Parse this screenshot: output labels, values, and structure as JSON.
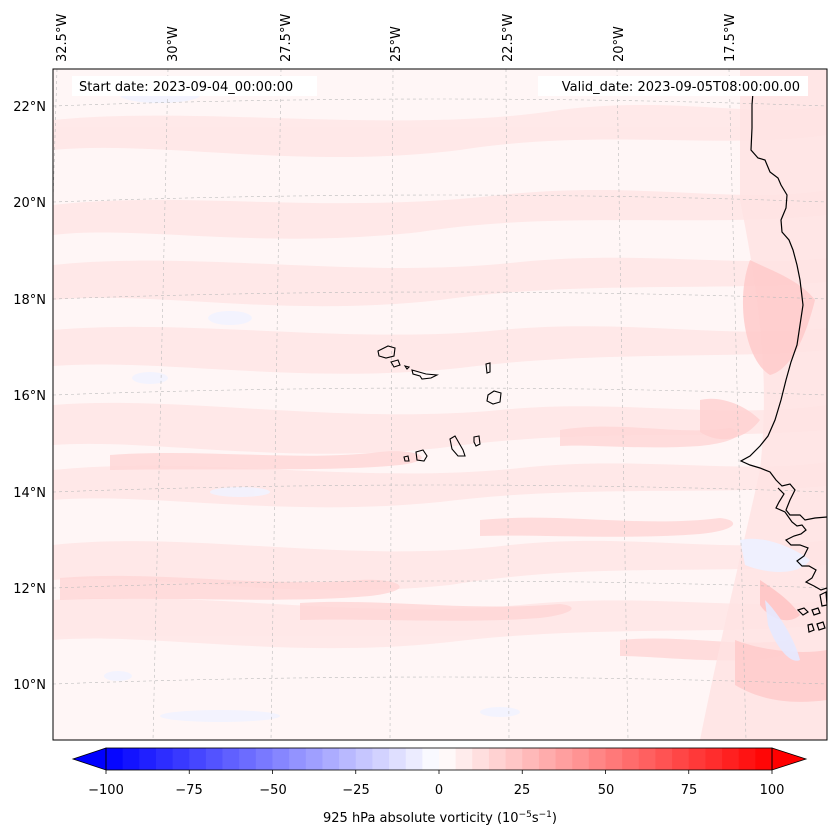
{
  "map": {
    "start_label": "Start date: 2023-09-04_00:00:00",
    "valid_label": "Valid_date: 2023-09-05T08:00:00.00",
    "lon_labels": [
      "32.5°W",
      "30°W",
      "27.5°W",
      "25°W",
      "22.5°W",
      "20°W",
      "17.5°W"
    ],
    "lat_labels": [
      "22°N",
      "20°N",
      "18°N",
      "16°N",
      "14°N",
      "12°N",
      "10°N"
    ],
    "background_color": "#fff6f6",
    "coast_color": "#000000",
    "grid_color": "#bbbbbb"
  },
  "colorbar": {
    "label": "925 hPa absolute vorticity (10",
    "label_exp1": "−5",
    "label_mid": "s",
    "label_exp2": "−1",
    "label_end": ")",
    "ticks": [
      "−100",
      "−75",
      "−50",
      "−25",
      "0",
      "25",
      "50",
      "75",
      "100"
    ],
    "tick_values": [
      -100,
      -75,
      -50,
      -25,
      0,
      25,
      50,
      75,
      100
    ],
    "min": -100,
    "max": 100,
    "n_levels": 40,
    "colormap": "bwr",
    "extend": "both"
  }
}
